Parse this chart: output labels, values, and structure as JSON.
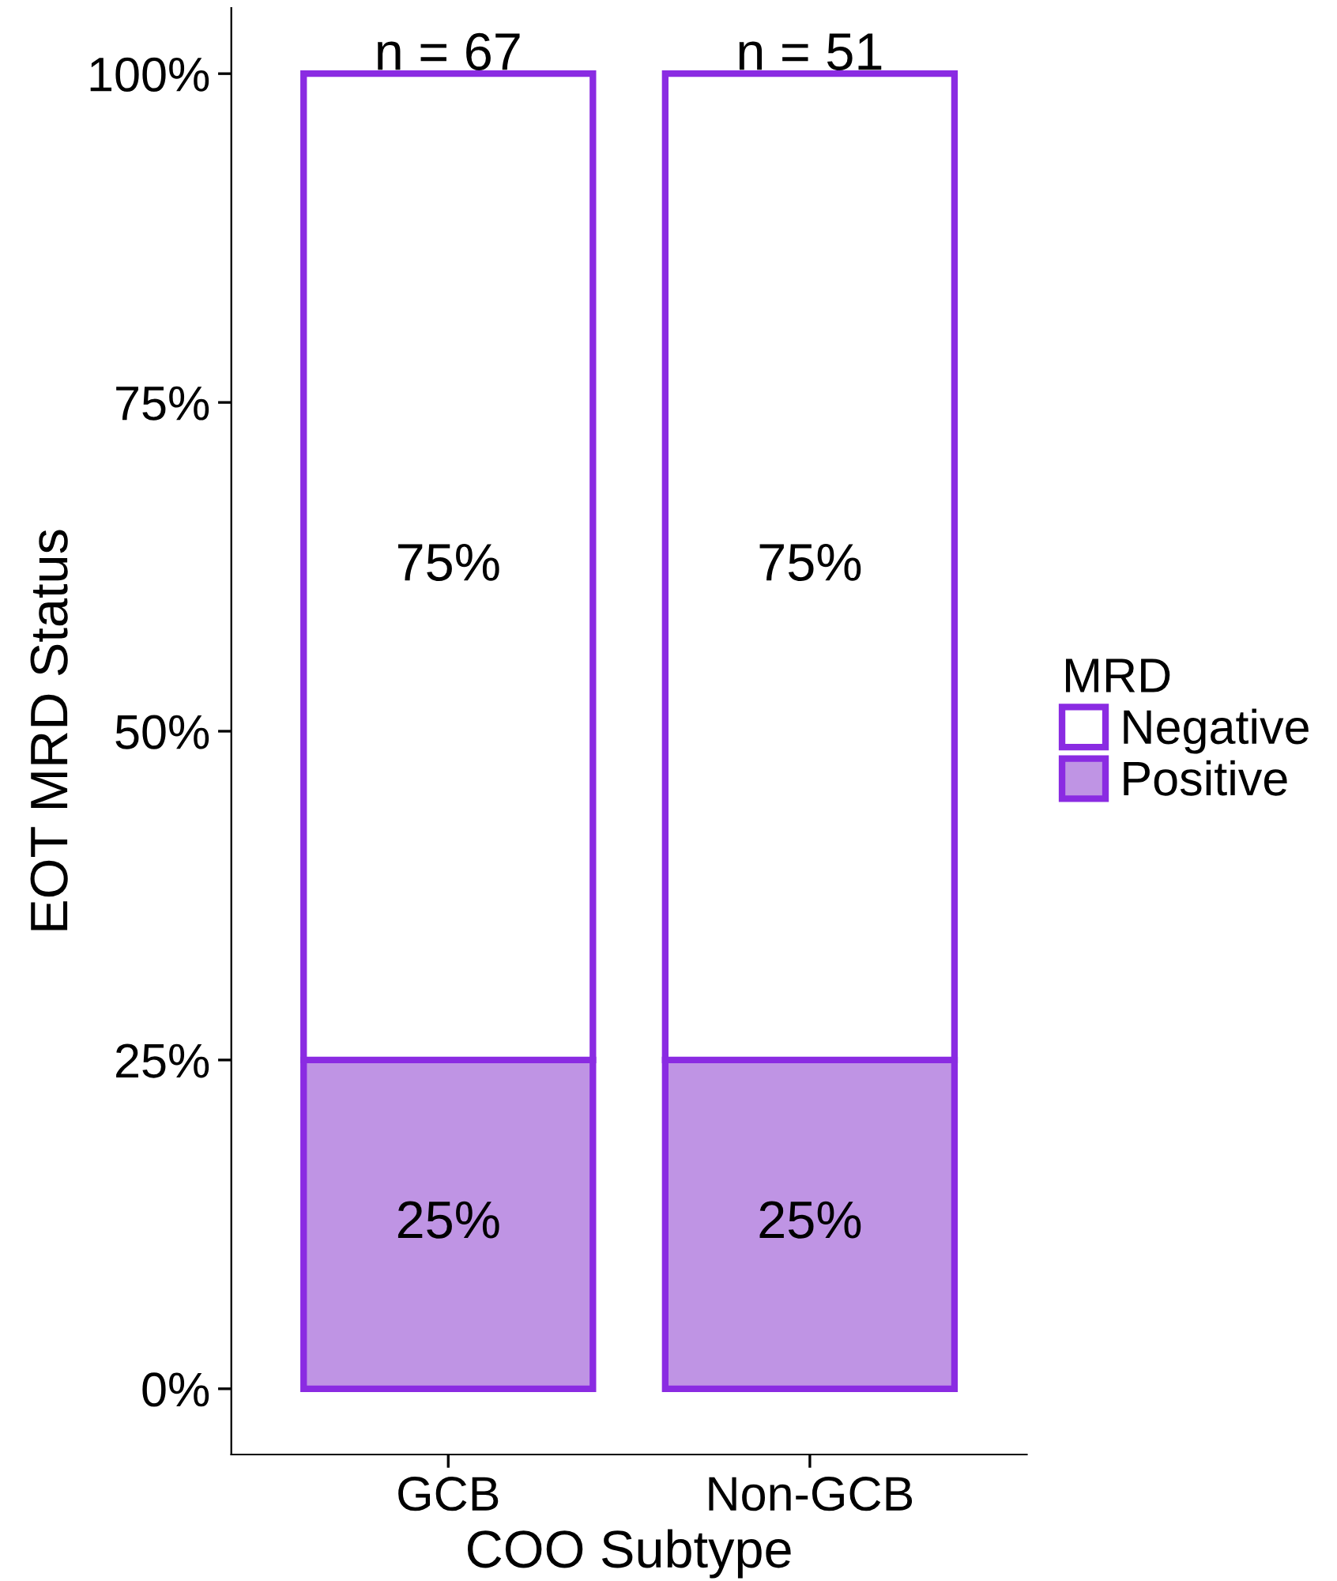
{
  "chart_data": {
    "type": "bar",
    "stacked": true,
    "xlabel": "COO Subtype",
    "ylabel": "EOT MRD Status",
    "legend_title": "MRD",
    "legend": "right",
    "grid": false,
    "categories": [
      "GCB",
      "Non-GCB"
    ],
    "series": [
      {
        "name": "Positive",
        "color": "#bf94e4",
        "values": [
          25,
          25
        ],
        "value_labels": [
          "25%",
          "25%"
        ]
      },
      {
        "name": "Negative",
        "color": "#ffffff",
        "values": [
          75,
          75
        ],
        "value_labels": [
          "75%",
          "75%"
        ]
      }
    ],
    "ylim": [
      -5,
      105
    ],
    "yticks": [
      {
        "value": 0,
        "label": "0%"
      },
      {
        "value": 25,
        "label": "25%"
      },
      {
        "value": 50,
        "label": "50%"
      },
      {
        "value": 75,
        "label": "75%"
      },
      {
        "value": 100,
        "label": "100%"
      }
    ],
    "annotations": [
      "n = 67",
      "n = 51"
    ]
  }
}
